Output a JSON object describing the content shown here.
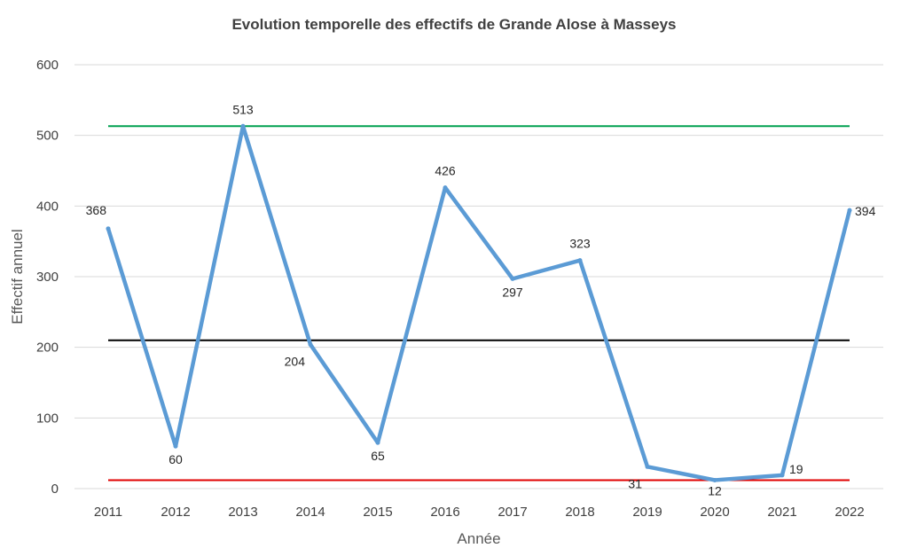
{
  "chart_data": {
    "type": "line",
    "title": "Evolution temporelle des effectifs de Grande Alose à Masseys",
    "xlabel": "Année",
    "ylabel": "Effectif annuel",
    "categories": [
      "2011",
      "2012",
      "2013",
      "2014",
      "2015",
      "2016",
      "2017",
      "2018",
      "2019",
      "2020",
      "2021",
      "2022"
    ],
    "series": [
      {
        "values": [
          368,
          60,
          513,
          204,
          65,
          426,
          297,
          323,
          31,
          12,
          19,
          394
        ],
        "color": "#5b9bd5",
        "data_labels": [
          "368",
          "60",
          "513",
          "204",
          "65",
          "426",
          "297",
          "323",
          "31",
          "12",
          "19",
          "394"
        ]
      }
    ],
    "reference_lines": [
      {
        "value": 513,
        "color": "#00a050"
      },
      {
        "value": 210,
        "color": "#000000"
      },
      {
        "value": 12,
        "color": "#e00000"
      }
    ],
    "ylim": [
      0,
      600
    ],
    "yticks": [
      "0",
      "100",
      "200",
      "300",
      "400",
      "500",
      "600"
    ],
    "grid": true,
    "legend": "none"
  }
}
